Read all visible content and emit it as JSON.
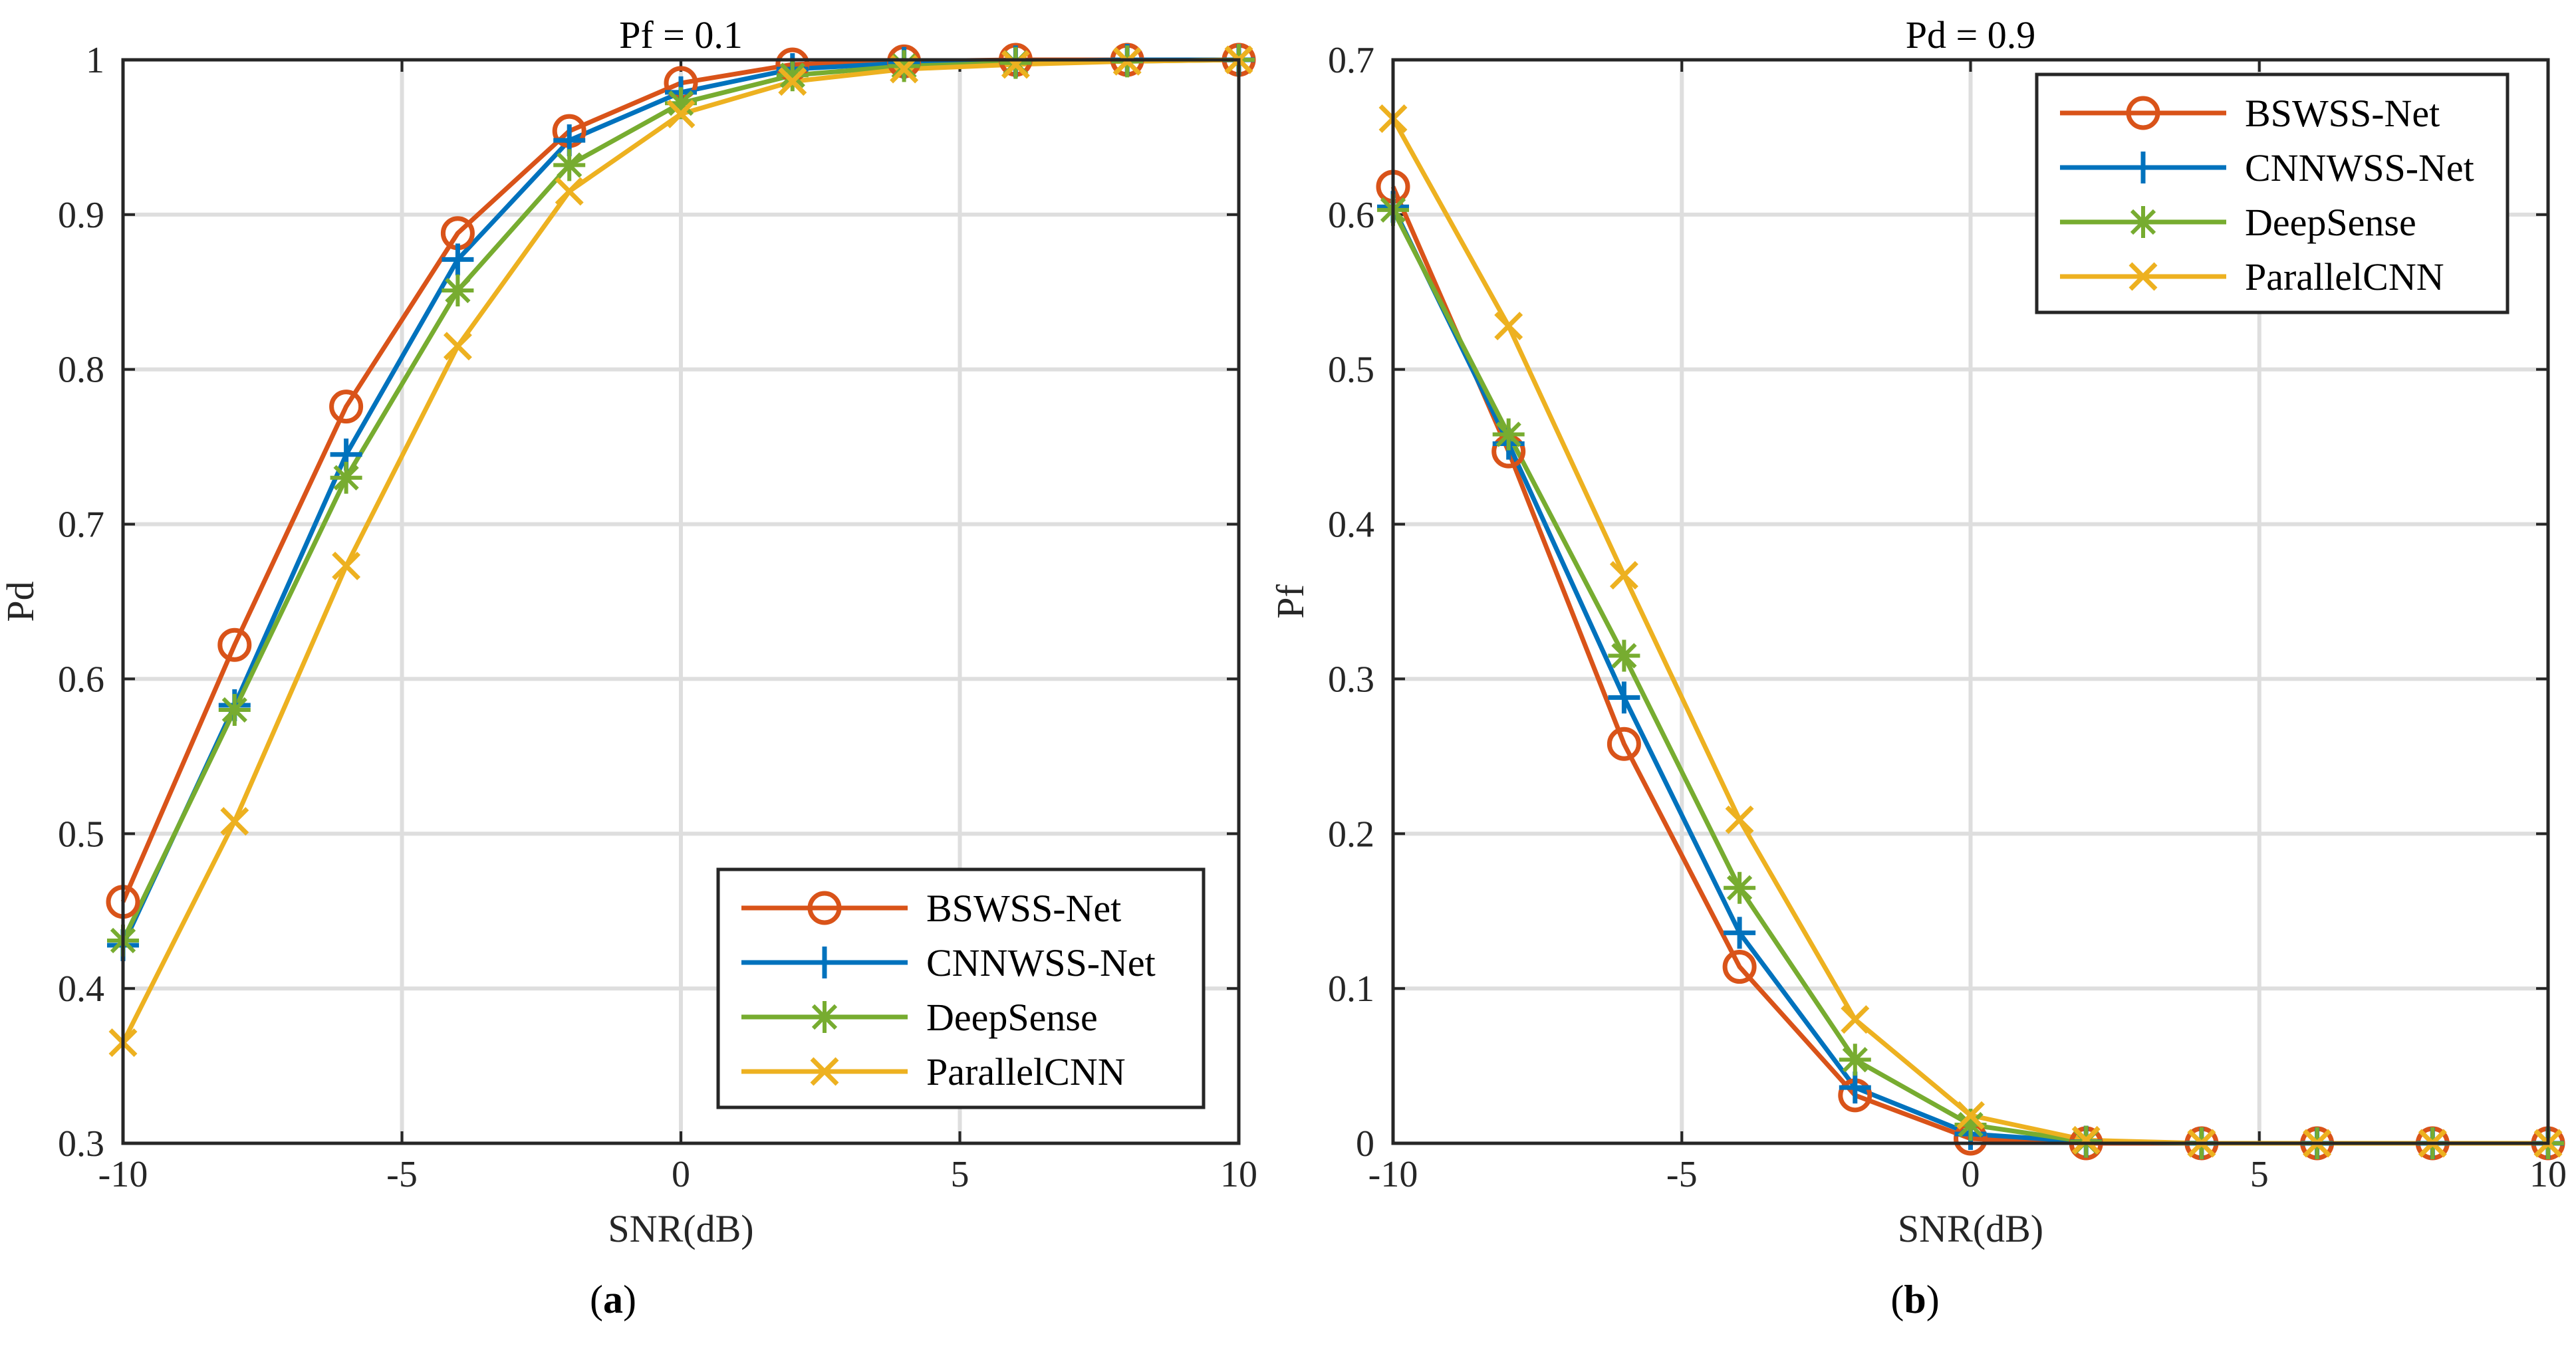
{
  "chart_data": [
    {
      "type": "line",
      "title": "Pf = 0.1",
      "xlabel": "SNR(dB)",
      "ylabel": "Pd",
      "caption_open": "(",
      "caption_letter": "a",
      "caption_close": ")",
      "xlim": [
        -10,
        10
      ],
      "ylim": [
        0.3,
        1.0
      ],
      "xticks": [
        -10,
        -5,
        0,
        5,
        10
      ],
      "xtick_labels": [
        "-10",
        "-5",
        "0",
        "5",
        "10"
      ],
      "yticks": [
        0.3,
        0.4,
        0.5,
        0.6,
        0.7,
        0.8,
        0.9,
        1.0
      ],
      "ytick_labels": [
        "0.3",
        "0.4",
        "0.5",
        "0.6",
        "0.7",
        "0.8",
        "0.9",
        "1"
      ],
      "grid": true,
      "legend_position": "bottom-right",
      "x": [
        -10,
        -8,
        -6,
        -4,
        -2,
        0,
        2,
        4,
        6,
        8,
        10
      ],
      "series": [
        {
          "name": "BSWSS-Net",
          "marker": "circle",
          "color": "#D95319",
          "values": [
            0.456,
            0.622,
            0.776,
            0.888,
            0.954,
            0.985,
            0.997,
            0.999,
            1.0,
            1.0,
            1.0
          ]
        },
        {
          "name": "CNNWSS-Net",
          "marker": "plus",
          "color": "#0072BD",
          "values": [
            0.428,
            0.583,
            0.745,
            0.871,
            0.948,
            0.979,
            0.994,
            0.998,
            0.999,
            1.0,
            1.0
          ]
        },
        {
          "name": "DeepSense",
          "marker": "asterisk",
          "color": "#77AC30",
          "values": [
            0.431,
            0.58,
            0.73,
            0.851,
            0.932,
            0.972,
            0.99,
            0.996,
            0.998,
            0.999,
            1.0
          ]
        },
        {
          "name": "ParallelCNN",
          "marker": "x",
          "color": "#EDB120",
          "values": [
            0.365,
            0.508,
            0.673,
            0.815,
            0.915,
            0.965,
            0.986,
            0.994,
            0.997,
            0.999,
            1.0
          ]
        }
      ]
    },
    {
      "type": "line",
      "title": "Pd = 0.9",
      "xlabel": "SNR(dB)",
      "ylabel": "Pf",
      "caption_open": "(",
      "caption_letter": "b",
      "caption_close": ")",
      "xlim": [
        -10,
        10
      ],
      "ylim": [
        0,
        0.7
      ],
      "xticks": [
        -10,
        -5,
        0,
        5,
        10
      ],
      "xtick_labels": [
        "-10",
        "-5",
        "0",
        "5",
        "10"
      ],
      "yticks": [
        0,
        0.1,
        0.2,
        0.3,
        0.4,
        0.5,
        0.6,
        0.7
      ],
      "ytick_labels": [
        "0",
        "0.1",
        "0.2",
        "0.3",
        "0.4",
        "0.5",
        "0.6",
        "0.7"
      ],
      "grid": true,
      "legend_position": "top-right",
      "x": [
        -10,
        -8,
        -6,
        -4,
        -2,
        0,
        2,
        4,
        6,
        8,
        10
      ],
      "series": [
        {
          "name": "BSWSS-Net",
          "marker": "circle",
          "color": "#D95319",
          "values": [
            0.618,
            0.447,
            0.258,
            0.114,
            0.031,
            0.003,
            0.0,
            0.0,
            0.0,
            0.0,
            0.0
          ]
        },
        {
          "name": "CNNWSS-Net",
          "marker": "plus",
          "color": "#0072BD",
          "values": [
            0.605,
            0.452,
            0.288,
            0.136,
            0.036,
            0.006,
            0.001,
            0.0,
            0.0,
            0.0,
            0.0
          ]
        },
        {
          "name": "DeepSense",
          "marker": "asterisk",
          "color": "#77AC30",
          "values": [
            0.603,
            0.458,
            0.315,
            0.165,
            0.054,
            0.012,
            0.001,
            0.0,
            0.0,
            0.0,
            0.0
          ]
        },
        {
          "name": "ParallelCNN",
          "marker": "x",
          "color": "#EDB120",
          "values": [
            0.662,
            0.528,
            0.367,
            0.209,
            0.08,
            0.018,
            0.002,
            0.0,
            0.0,
            0.0,
            0.0
          ]
        }
      ]
    }
  ]
}
